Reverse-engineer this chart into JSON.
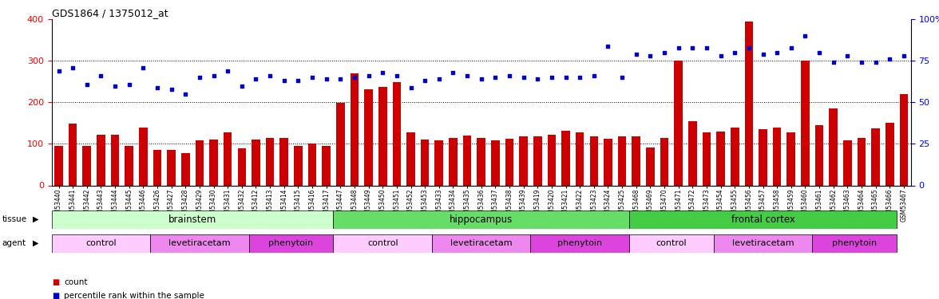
{
  "title": "GDS1864 / 1375012_at",
  "samples": [
    "GSM53440",
    "GSM53441",
    "GSM53442",
    "GSM53443",
    "GSM53444",
    "GSM53445",
    "GSM53446",
    "GSM53426",
    "GSM53427",
    "GSM53428",
    "GSM53429",
    "GSM53430",
    "GSM53431",
    "GSM53432",
    "GSM53412",
    "GSM53413",
    "GSM53414",
    "GSM53415",
    "GSM53416",
    "GSM53417",
    "GSM53447",
    "GSM53448",
    "GSM53449",
    "GSM53450",
    "GSM53451",
    "GSM53452",
    "GSM53453",
    "GSM53433",
    "GSM53434",
    "GSM53435",
    "GSM53436",
    "GSM53437",
    "GSM53438",
    "GSM53439",
    "GSM53419",
    "GSM53420",
    "GSM53421",
    "GSM53422",
    "GSM53423",
    "GSM53424",
    "GSM53425",
    "GSM53468",
    "GSM53469",
    "GSM53470",
    "GSM53471",
    "GSM53472",
    "GSM53473",
    "GSM53454",
    "GSM53455",
    "GSM53456",
    "GSM53457",
    "GSM53458",
    "GSM53459",
    "GSM53460",
    "GSM53461",
    "GSM53462",
    "GSM53463",
    "GSM53464",
    "GSM53465",
    "GSM53466",
    "GSM53467"
  ],
  "counts": [
    95,
    148,
    95,
    122,
    122,
    95,
    140,
    85,
    85,
    78,
    108,
    110,
    128,
    90,
    110,
    115,
    115,
    95,
    100,
    95,
    198,
    270,
    232,
    238,
    248,
    128,
    110,
    108,
    115,
    120,
    115,
    108,
    112,
    118,
    118,
    122,
    132,
    128,
    118,
    112,
    118,
    118,
    92,
    115,
    300,
    155,
    128,
    130,
    140,
    395,
    135,
    140,
    128,
    300,
    145,
    185,
    108,
    115,
    138,
    150,
    220
  ],
  "percentiles_pct": [
    69,
    71,
    61,
    66,
    60,
    61,
    71,
    59,
    58,
    55,
    65,
    66,
    69,
    60,
    64,
    66,
    63,
    63,
    65,
    64,
    64,
    65,
    66,
    68,
    66,
    59,
    63,
    64,
    68,
    66,
    64,
    65,
    66,
    65,
    64,
    65,
    65,
    65,
    66,
    84,
    65,
    79,
    78,
    80,
    83,
    83,
    83,
    78,
    80,
    83,
    79,
    80,
    83,
    90,
    80,
    74,
    78,
    74,
    74,
    76,
    78
  ],
  "bar_color": "#cc0000",
  "dot_color": "#0000cc",
  "ylim_left": [
    0,
    400
  ],
  "ylim_right": [
    0,
    100
  ],
  "yticks_left": [
    0,
    100,
    200,
    300,
    400
  ],
  "yticks_right": [
    0,
    25,
    50,
    75,
    100
  ],
  "tissue_groups": [
    {
      "label": "brainstem",
      "start": 0,
      "end": 20,
      "color": "#ccffcc"
    },
    {
      "label": "hippocampus",
      "start": 20,
      "end": 41,
      "color": "#66dd66"
    },
    {
      "label": "frontal cortex",
      "start": 41,
      "end": 60,
      "color": "#44cc44"
    }
  ],
  "agent_groups": [
    {
      "label": "control",
      "start": 0,
      "end": 7,
      "color": "#ffccff"
    },
    {
      "label": "levetiracetam",
      "start": 7,
      "end": 14,
      "color": "#ee88ee"
    },
    {
      "label": "phenytoin",
      "start": 14,
      "end": 20,
      "color": "#dd44dd"
    },
    {
      "label": "control",
      "start": 20,
      "end": 27,
      "color": "#ffccff"
    },
    {
      "label": "levetiracetam",
      "start": 27,
      "end": 34,
      "color": "#ee88ee"
    },
    {
      "label": "phenytoin",
      "start": 34,
      "end": 41,
      "color": "#dd44dd"
    },
    {
      "label": "control",
      "start": 41,
      "end": 47,
      "color": "#ffccff"
    },
    {
      "label": "levetiracetam",
      "start": 47,
      "end": 54,
      "color": "#ee88ee"
    },
    {
      "label": "phenytoin",
      "start": 54,
      "end": 60,
      "color": "#dd44dd"
    }
  ],
  "legend_items": [
    {
      "label": "count",
      "color": "#cc0000"
    },
    {
      "label": "percentile rank within the sample",
      "color": "#0000cc"
    }
  ]
}
